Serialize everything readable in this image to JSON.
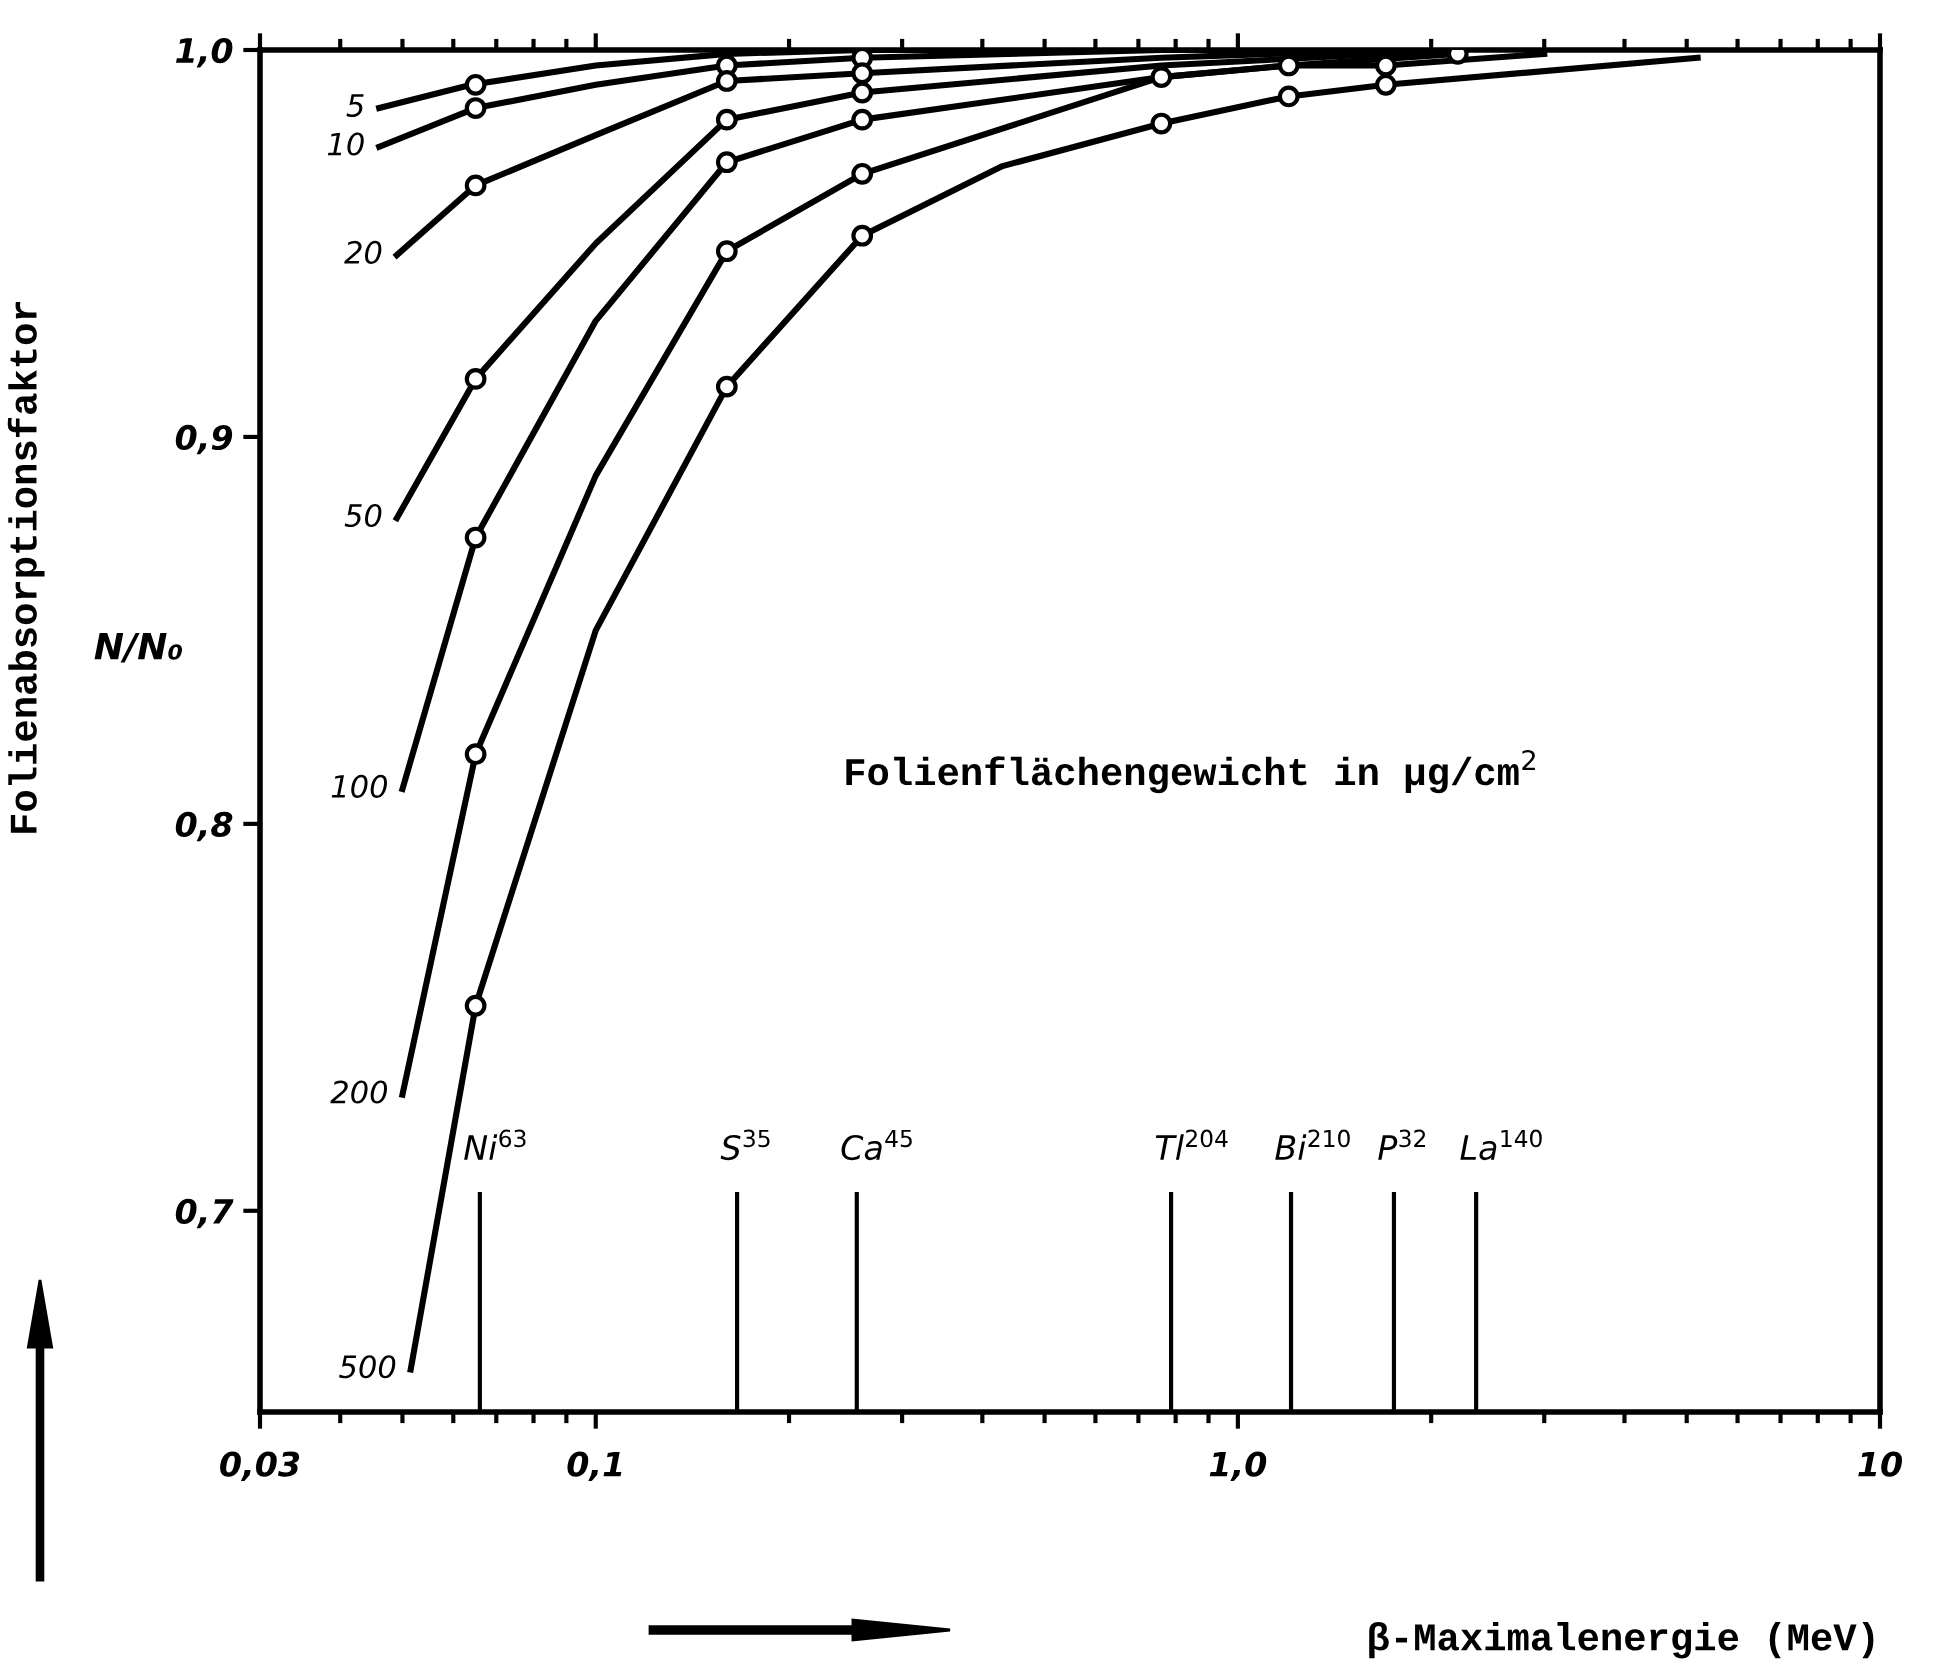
{
  "chart_data": {
    "type": "line",
    "xlabel": "β-Maximalenergie (MeV)",
    "ylabel": "Folienabsorptionsfaktor",
    "annotations": [
      "N/N₀",
      "Folienflächengewicht in µg/cm$^{2}$"
    ],
    "log": "x",
    "xlim": [
      0.03,
      10
    ],
    "xticks": [
      {
        "value": 0.03,
        "label": "0,03"
      },
      {
        "value": 0.1,
        "label": "0,1"
      },
      {
        "value": 1.0,
        "label": "1,0"
      },
      {
        "value": 10,
        "label": "10"
      }
    ],
    "ylim": [
      0.648,
      1.0
    ],
    "yticks": [
      {
        "value": 0.7,
        "label": "0,7"
      },
      {
        "value": 0.8,
        "label": "0,8"
      },
      {
        "value": 0.9,
        "label": "0,9"
      },
      {
        "value": 1.0,
        "label": "1,0"
      }
    ],
    "grid": false,
    "legend": false,
    "line_style": "solid",
    "series": [
      {
        "name": "5",
        "color": "#000000",
        "x": [
          0.046,
          0.064,
          0.1,
          0.16,
          0.26,
          0.5
        ],
        "values": [
          0.985,
          0.991,
          0.996,
          0.999,
          1.0,
          1.0
        ]
      },
      {
        "name": "10",
        "color": "#000000",
        "x": [
          0.046,
          0.065,
          0.1,
          0.16,
          0.26,
          0.76,
          1.2
        ],
        "values": [
          0.975,
          0.985,
          0.991,
          0.996,
          0.998,
          1.0,
          1.0
        ]
      },
      {
        "name": "20",
        "color": "#000000",
        "x": [
          0.049,
          0.065,
          0.1,
          0.16,
          0.26,
          0.76,
          1.7
        ],
        "values": [
          0.947,
          0.965,
          0.978,
          0.992,
          0.994,
          0.998,
          1.0
        ]
      },
      {
        "name": "50",
        "color": "#000000",
        "x": [
          0.049,
          0.065,
          0.1,
          0.16,
          0.26,
          0.76,
          2.2
        ],
        "values": [
          0.879,
          0.915,
          0.95,
          0.982,
          0.989,
          0.996,
          1.0
        ]
      },
      {
        "name": "100",
        "color": "#000000",
        "x": [
          0.05,
          0.065,
          0.1,
          0.16,
          0.26,
          0.76,
          1.2,
          2.2
        ],
        "values": [
          0.809,
          0.874,
          0.93,
          0.971,
          0.982,
          0.993,
          0.996,
          0.999
        ]
      },
      {
        "name": "200",
        "color": "#000000",
        "x": [
          0.05,
          0.065,
          0.1,
          0.16,
          0.26,
          0.76,
          1.2,
          1.7,
          3.0
        ],
        "values": [
          0.73,
          0.818,
          0.89,
          0.948,
          0.968,
          0.993,
          0.996,
          0.996,
          0.999
        ]
      },
      {
        "name": "500",
        "color": "#000000",
        "x": [
          0.0515,
          0.065,
          0.1,
          0.16,
          0.26,
          0.43,
          0.76,
          1.2,
          1.7,
          5.2
        ],
        "values": [
          0.659,
          0.753,
          0.85,
          0.913,
          0.952,
          0.97,
          0.981,
          0.988,
          0.991,
          0.998
        ]
      },
      {
        "type": "scatter",
        "marker": "circle",
        "color": "#000000",
        "x": [
          0.065,
          0.065,
          0.065,
          0.065,
          0.065,
          0.065,
          0.065,
          0.16,
          0.16,
          0.16,
          0.16,
          0.16,
          0.16,
          0.26,
          0.26,
          0.26,
          0.26,
          0.26,
          0.26,
          0.76,
          0.76,
          1.2,
          1.2,
          1.7,
          1.7,
          2.2
        ],
        "values": [
          0.991,
          0.985,
          0.965,
          0.915,
          0.874,
          0.818,
          0.753,
          0.996,
          0.992,
          0.982,
          0.971,
          0.948,
          0.913,
          0.998,
          0.994,
          0.989,
          0.982,
          0.968,
          0.952,
          0.993,
          0.981,
          0.996,
          0.988,
          0.996,
          0.991,
          0.999
        ]
      }
    ],
    "ref_lines": [
      {
        "axis": "x",
        "value": 0.066,
        "label": "Ni$^{63}$",
        "color": "#000000"
      },
      {
        "axis": "x",
        "value": 0.166,
        "label": "S$^{35}$",
        "color": "#000000"
      },
      {
        "axis": "x",
        "value": 0.255,
        "label": "Ca$^{45}$",
        "color": "#000000"
      },
      {
        "axis": "x",
        "value": 0.787,
        "label": "Tl$^{204}$",
        "color": "#000000"
      },
      {
        "axis": "x",
        "value": 1.21,
        "label": "Bi$^{210}$",
        "color": "#000000"
      },
      {
        "axis": "x",
        "value": 1.75,
        "label": "P$^{32}$",
        "color": "#000000"
      },
      {
        "axis": "x",
        "value": 2.35,
        "label": "La$^{140}$",
        "color": "#000000"
      }
    ]
  }
}
